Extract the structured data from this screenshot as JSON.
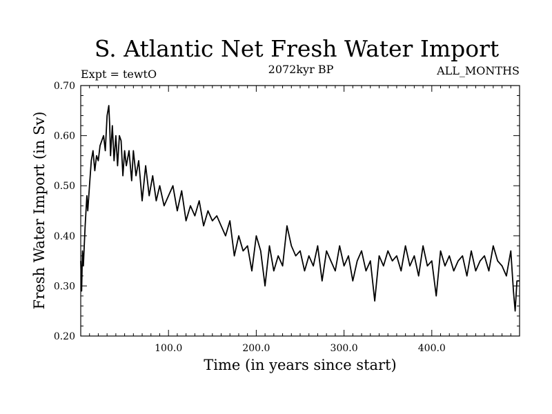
{
  "chart_data": {
    "type": "line",
    "title": "S. Atlantic Net Fresh Water Import",
    "subtitle_left": "Expt = tewtO",
    "subtitle_center": "2072kyr BP",
    "subtitle_right": "ALL_MONTHS",
    "xlabel": "Time (in years since start)",
    "ylabel": "Fresh Water Import (in Sv)",
    "xlim": [
      0,
      500
    ],
    "ylim": [
      0.2,
      0.7
    ],
    "xticks": [
      {
        "value": 100,
        "label": "100.0"
      },
      {
        "value": 200,
        "label": "200.0"
      },
      {
        "value": 300,
        "label": "300.0"
      },
      {
        "value": 400,
        "label": "400.0"
      }
    ],
    "yticks": [
      {
        "value": 0.2,
        "label": "0.20"
      },
      {
        "value": 0.3,
        "label": "0.30"
      },
      {
        "value": 0.4,
        "label": "0.40"
      },
      {
        "value": 0.5,
        "label": "0.50"
      },
      {
        "value": 0.6,
        "label": "0.60"
      },
      {
        "value": 0.7,
        "label": "0.70"
      }
    ],
    "series": [
      {
        "name": "Net Fresh Water Import",
        "color": "#000000",
        "x": [
          0,
          1,
          2,
          3,
          5,
          7,
          8,
          10,
          12,
          14,
          16,
          18,
          20,
          22,
          24,
          26,
          28,
          30,
          32,
          33,
          34,
          36,
          38,
          40,
          42,
          44,
          46,
          48,
          50,
          52,
          55,
          58,
          60,
          63,
          66,
          70,
          74,
          78,
          82,
          86,
          90,
          95,
          100,
          105,
          110,
          115,
          120,
          125,
          130,
          135,
          140,
          145,
          150,
          155,
          160,
          165,
          170,
          175,
          180,
          185,
          190,
          195,
          200,
          205,
          210,
          215,
          220,
          225,
          230,
          235,
          240,
          245,
          250,
          255,
          260,
          265,
          270,
          275,
          280,
          285,
          290,
          295,
          300,
          305,
          310,
          315,
          320,
          325,
          330,
          335,
          340,
          345,
          350,
          355,
          360,
          365,
          370,
          375,
          380,
          385,
          390,
          395,
          400,
          405,
          410,
          415,
          420,
          425,
          430,
          435,
          440,
          445,
          450,
          455,
          460,
          465,
          470,
          475,
          480,
          485,
          490,
          493,
          495,
          497,
          500
        ],
        "values": [
          0.35,
          0.29,
          0.37,
          0.34,
          0.42,
          0.48,
          0.45,
          0.5,
          0.55,
          0.57,
          0.53,
          0.56,
          0.55,
          0.58,
          0.59,
          0.6,
          0.57,
          0.64,
          0.66,
          0.62,
          0.56,
          0.62,
          0.55,
          0.6,
          0.54,
          0.6,
          0.59,
          0.52,
          0.57,
          0.54,
          0.57,
          0.51,
          0.57,
          0.52,
          0.55,
          0.47,
          0.54,
          0.48,
          0.52,
          0.47,
          0.5,
          0.46,
          0.48,
          0.5,
          0.45,
          0.49,
          0.43,
          0.46,
          0.44,
          0.47,
          0.42,
          0.45,
          0.43,
          0.44,
          0.42,
          0.4,
          0.43,
          0.36,
          0.4,
          0.37,
          0.38,
          0.33,
          0.4,
          0.37,
          0.3,
          0.38,
          0.33,
          0.36,
          0.34,
          0.42,
          0.38,
          0.36,
          0.37,
          0.33,
          0.36,
          0.34,
          0.38,
          0.31,
          0.37,
          0.35,
          0.33,
          0.38,
          0.34,
          0.36,
          0.31,
          0.35,
          0.37,
          0.33,
          0.35,
          0.27,
          0.36,
          0.34,
          0.37,
          0.35,
          0.36,
          0.33,
          0.38,
          0.34,
          0.36,
          0.32,
          0.38,
          0.34,
          0.35,
          0.28,
          0.37,
          0.34,
          0.36,
          0.33,
          0.35,
          0.36,
          0.32,
          0.37,
          0.33,
          0.35,
          0.36,
          0.33,
          0.38,
          0.35,
          0.34,
          0.32,
          0.37,
          0.29,
          0.25,
          0.31,
          0.31
        ]
      }
    ]
  }
}
